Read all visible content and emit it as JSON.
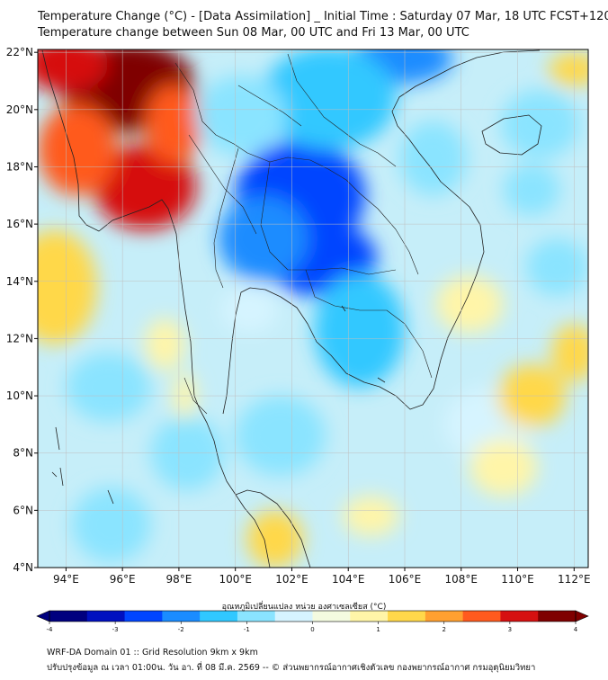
{
  "title_line1": "Temperature Change (°C) - [Data Assimilation] _ Initial Time : Saturday 07 Mar, 18 UTC FCST+120",
  "title_line2": "Temperature change between Sun 08 Mar, 00 UTC and Fri 13 Mar, 00 UTC",
  "lat_labels": [
    "22°N",
    "20°N",
    "18°N",
    "16°N",
    "14°N",
    "12°N",
    "10°N",
    "8°N",
    "6°N",
    "4°N"
  ],
  "lon_labels": [
    "94°E",
    "96°E",
    "98°E",
    "100°E",
    "102°E",
    "104°E",
    "106°E",
    "108°E",
    "110°E",
    "112°E"
  ],
  "colorbar": {
    "label": "อุณหภูมิเปลี่ยนแปลง หน่วย องศาเซลเซียส (°C)",
    "ticks": [
      "-4",
      "-3",
      "-2",
      "-1",
      "0",
      "1",
      "2",
      "3",
      "4"
    ],
    "min": -4,
    "max": 4,
    "colors": [
      "#00007f",
      "#0010c0",
      "#0045ff",
      "#1a8cff",
      "#30c8ff",
      "#8ae4ff",
      "#d6f4ff",
      "#f4fbe0",
      "#fff5a8",
      "#ffd84a",
      "#ffa030",
      "#ff5a1e",
      "#d61010",
      "#7f0000"
    ]
  },
  "footer_line1": "WRF-DA Domain 01 :: Grid Resolution 9km x 9km",
  "footer_line2": "ปรับปรุงข้อมูล ณ เวลา 01:00น. วัน อา. ที่ 08 มี.ค. 2569 -- © ส่วนพยากรณ์อากาศเชิงตัวเลข กองพยากรณ์อากาศ กรมอุตุนิยมวิทยา",
  "field_blobs": [
    {
      "lon": 96.2,
      "lat": 20.8,
      "rx": 2.4,
      "ry": 1.6,
      "v": 3.6
    },
    {
      "lon": 94.0,
      "lat": 21.6,
      "rx": 1.5,
      "ry": 1.0,
      "v": 3.0
    },
    {
      "lon": 96.8,
      "lat": 17.3,
      "rx": 1.8,
      "ry": 1.5,
      "v": 3.3
    },
    {
      "lon": 94.4,
      "lat": 18.6,
      "rx": 1.4,
      "ry": 1.6,
      "v": 2.4
    },
    {
      "lon": 97.8,
      "lat": 19.5,
      "rx": 1.0,
      "ry": 1.4,
      "v": 2.6
    },
    {
      "lon": 93.6,
      "lat": 13.8,
      "rx": 1.5,
      "ry": 2.0,
      "v": 1.2
    },
    {
      "lon": 102.3,
      "lat": 17.0,
      "rx": 2.3,
      "ry": 1.9,
      "v": -2.4
    },
    {
      "lon": 103.0,
      "lat": 14.8,
      "rx": 2.0,
      "ry": 1.3,
      "v": -2.6
    },
    {
      "lon": 101.0,
      "lat": 15.5,
      "rx": 1.6,
      "ry": 1.5,
      "v": -1.8
    },
    {
      "lon": 105.9,
      "lat": 21.8,
      "rx": 1.8,
      "ry": 0.9,
      "v": -2.2
    },
    {
      "lon": 103.3,
      "lat": 20.4,
      "rx": 2.4,
      "ry": 1.8,
      "v": -1.3
    },
    {
      "lon": 104.4,
      "lat": 12.3,
      "rx": 1.6,
      "ry": 2.0,
      "v": -1.2
    },
    {
      "lon": 100.2,
      "lat": 19.8,
      "rx": 1.6,
      "ry": 1.4,
      "v": -1.1
    },
    {
      "lon": 107.0,
      "lat": 18.3,
      "rx": 1.2,
      "ry": 1.3,
      "v": -0.9
    },
    {
      "lon": 110.8,
      "lat": 19.5,
      "rx": 1.4,
      "ry": 1.2,
      "v": -0.8
    },
    {
      "lon": 110.5,
      "lat": 17.2,
      "rx": 1.0,
      "ry": 0.9,
      "v": -0.7
    },
    {
      "lon": 111.4,
      "lat": 14.5,
      "rx": 1.1,
      "ry": 1.0,
      "v": -0.6
    },
    {
      "lon": 95.5,
      "lat": 10.3,
      "rx": 1.5,
      "ry": 1.2,
      "v": -0.8
    },
    {
      "lon": 98.3,
      "lat": 8.0,
      "rx": 1.3,
      "ry": 1.3,
      "v": -0.7
    },
    {
      "lon": 101.6,
      "lat": 8.6,
      "rx": 1.6,
      "ry": 1.4,
      "v": -0.7
    },
    {
      "lon": 95.6,
      "lat": 5.5,
      "rx": 1.4,
      "ry": 1.3,
      "v": -0.8
    },
    {
      "lon": 109.0,
      "lat": 9.0,
      "rx": 1.6,
      "ry": 1.3,
      "v": -0.5
    },
    {
      "lon": 100.5,
      "lat": 13.0,
      "rx": 1.0,
      "ry": 0.8,
      "v": -0.4
    },
    {
      "lon": 110.5,
      "lat": 10.0,
      "rx": 1.2,
      "ry": 1.1,
      "v": 1.5
    },
    {
      "lon": 108.3,
      "lat": 13.2,
      "rx": 1.2,
      "ry": 1.0,
      "v": 1.0
    },
    {
      "lon": 109.5,
      "lat": 7.5,
      "rx": 1.2,
      "ry": 1.0,
      "v": 1.0
    },
    {
      "lon": 112.0,
      "lat": 11.5,
      "rx": 0.8,
      "ry": 1.0,
      "v": 1.2
    },
    {
      "lon": 101.4,
      "lat": 5.0,
      "rx": 1.0,
      "ry": 1.0,
      "v": 1.3
    },
    {
      "lon": 104.8,
      "lat": 5.8,
      "rx": 1.0,
      "ry": 0.7,
      "v": 1.0
    },
    {
      "lon": 97.5,
      "lat": 11.8,
      "rx": 0.7,
      "ry": 0.9,
      "v": 0.9
    },
    {
      "lon": 98.2,
      "lat": 10.0,
      "rx": 0.4,
      "ry": 0.8,
      "v": 1.1
    },
    {
      "lon": 112.0,
      "lat": 21.4,
      "rx": 0.9,
      "ry": 0.6,
      "v": 1.2
    }
  ]
}
